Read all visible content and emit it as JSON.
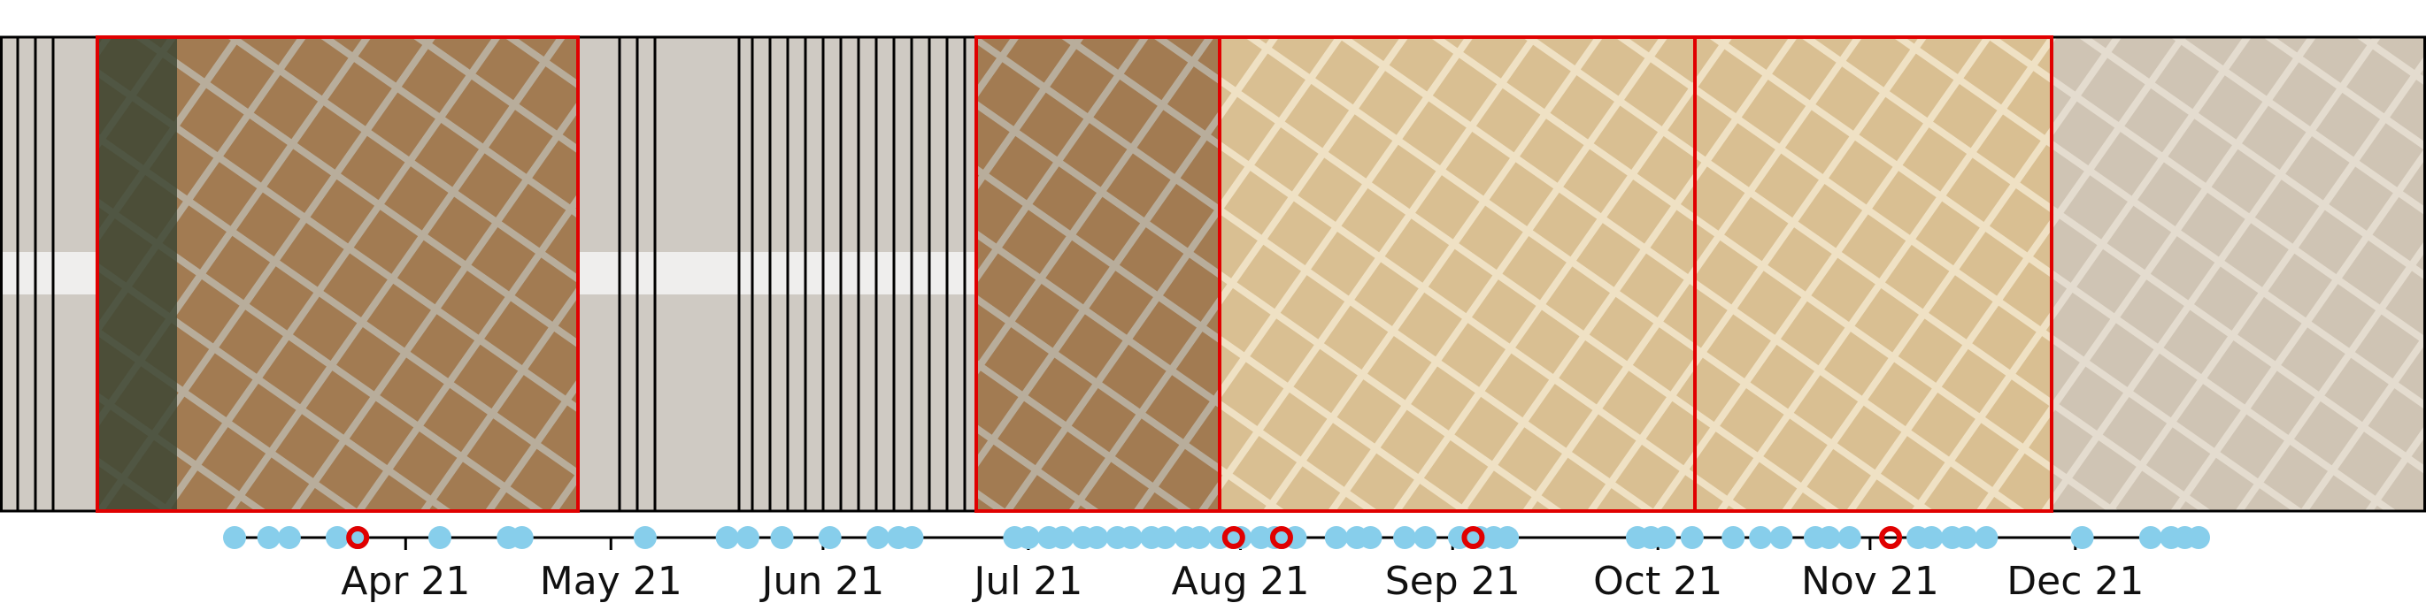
{
  "chart_data": {
    "type": "scatter",
    "title": "",
    "xlabel": "",
    "ylabel": "",
    "x_range": [
      "2021-03-06",
      "2022-01-01"
    ],
    "tick_labels": [
      "Apr 21",
      "May 21",
      "Jun 21",
      "Jul 21",
      "Aug 21",
      "Sep 21",
      "Oct 21",
      "Nov 21",
      "Dec 21"
    ],
    "tick_dates": [
      "2021-04-01",
      "2021-05-01",
      "2021-06-01",
      "2021-07-01",
      "2021-08-01",
      "2021-09-01",
      "2021-10-01",
      "2021-11-01",
      "2021-12-01"
    ],
    "acquisition_dates": [
      "2021-03-07",
      "2021-03-12",
      "2021-03-15",
      "2021-03-22",
      "2021-03-25",
      "2021-04-06",
      "2021-04-16",
      "2021-04-18",
      "2021-05-06",
      "2021-05-18",
      "2021-05-21",
      "2021-05-26",
      "2021-06-02",
      "2021-06-09",
      "2021-06-12",
      "2021-06-14",
      "2021-06-29",
      "2021-07-01",
      "2021-07-04",
      "2021-07-06",
      "2021-07-09",
      "2021-07-11",
      "2021-07-14",
      "2021-07-16",
      "2021-07-19",
      "2021-07-21",
      "2021-07-24",
      "2021-07-26",
      "2021-07-29",
      "2021-08-01",
      "2021-08-04",
      "2021-08-06",
      "2021-08-09",
      "2021-08-15",
      "2021-08-18",
      "2021-08-20",
      "2021-08-25",
      "2021-08-28",
      "2021-09-02",
      "2021-09-05",
      "2021-09-07",
      "2021-09-09",
      "2021-09-28",
      "2021-09-30",
      "2021-10-02",
      "2021-10-06",
      "2021-10-12",
      "2021-10-16",
      "2021-10-19",
      "2021-10-24",
      "2021-10-26",
      "2021-10-29",
      "2021-11-08",
      "2021-11-10",
      "2021-11-13",
      "2021-11-15",
      "2021-11-18",
      "2021-12-02",
      "2021-12-12",
      "2021-12-15",
      "2021-12-17",
      "2021-12-19"
    ],
    "highlighted_dates": [
      "2021-03-25",
      "2021-07-31",
      "2021-08-07",
      "2021-09-04",
      "2021-11-04"
    ],
    "colors": {
      "point": "#87ceeb",
      "highlight": "#e00000",
      "axis": "#000000",
      "strip_border": "#000000"
    },
    "image_strip": {
      "highlighted_tiles": 4,
      "faded_tiles": "others"
    }
  }
}
